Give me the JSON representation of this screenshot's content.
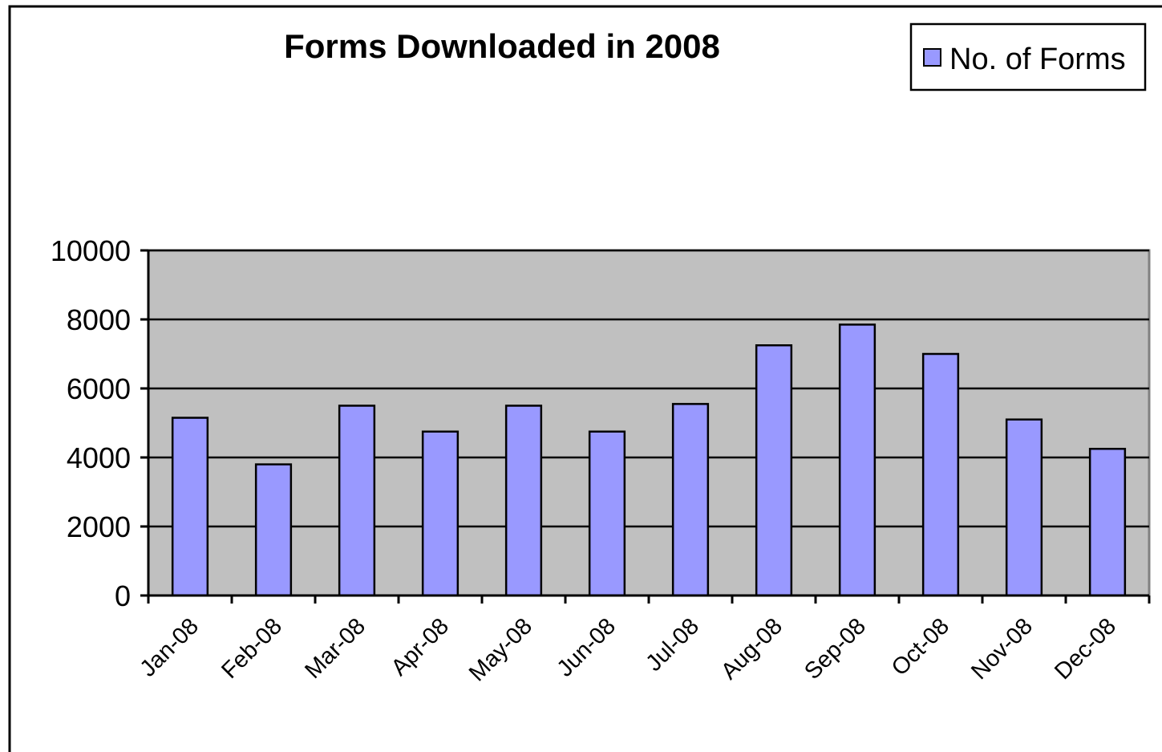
{
  "chart_data": {
    "type": "bar",
    "title": "Forms Downloaded in 2008",
    "xlabel": "",
    "ylabel": "",
    "categories": [
      "Jan-08",
      "Feb-08",
      "Mar-08",
      "Apr-08",
      "May-08",
      "Jun-08",
      "Jul-08",
      "Aug-08",
      "Sep-08",
      "Oct-08",
      "Nov-08",
      "Dec-08"
    ],
    "series": [
      {
        "name": "No. of Forms",
        "values": [
          5150,
          3800,
          5500,
          4750,
          5500,
          4750,
          5550,
          7250,
          7850,
          7000,
          5100,
          4250
        ],
        "color": "#9999ff"
      }
    ],
    "ylim": [
      0,
      10000
    ],
    "yticks": [
      "0",
      "2000",
      "4000",
      "6000",
      "8000",
      "10000"
    ],
    "grid": true,
    "plot_background": "#c0c0c0",
    "legend_position": "top-right"
  }
}
